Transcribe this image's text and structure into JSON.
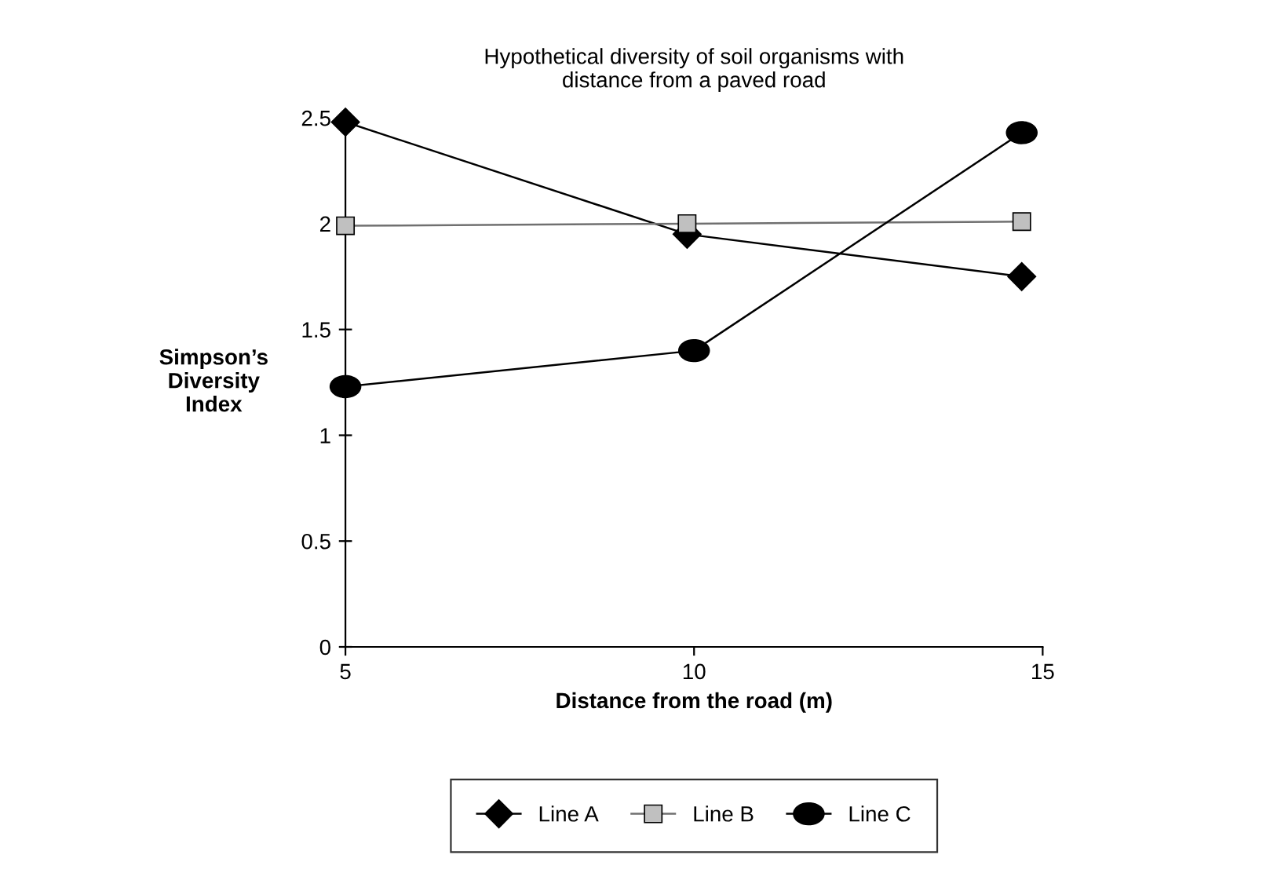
{
  "chart_data": {
    "type": "line",
    "title": "Hypothetical diversity of soil organisms with\ndistance from a paved road",
    "xlabel": "Distance from the road (m)",
    "ylabel": "Simpson’s\nDiversity\nIndex",
    "xlim": [
      5,
      15
    ],
    "xticks": [
      5,
      10,
      15
    ],
    "ylim": [
      0,
      2.5
    ],
    "yticks": [
      0,
      0.5,
      1,
      1.5,
      2,
      2.5
    ],
    "grid": false,
    "legend": "bottom",
    "series": [
      {
        "name": "Line A",
        "color": "#000000",
        "marker": "diamond",
        "x": [
          5,
          9.9,
          14.7
        ],
        "values": [
          2.48,
          1.95,
          1.75
        ]
      },
      {
        "name": "Line B",
        "color": "#c0c0c0",
        "marker": "square",
        "x": [
          5,
          9.9,
          14.7
        ],
        "values": [
          1.99,
          2.0,
          2.01
        ]
      },
      {
        "name": "Line C",
        "color": "#000000",
        "marker": "circle",
        "x": [
          5,
          10,
          14.7
        ],
        "values": [
          1.23,
          1.4,
          2.43
        ]
      }
    ]
  }
}
